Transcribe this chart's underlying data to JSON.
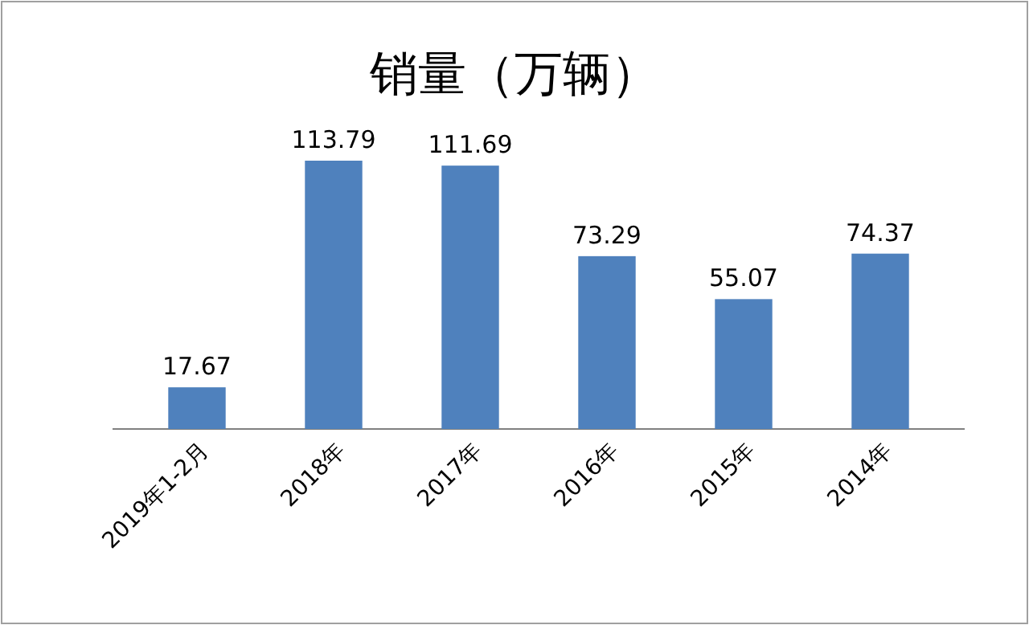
{
  "chart_data": {
    "type": "bar",
    "title": "销量（万辆）",
    "categories": [
      "2019年1-2月",
      "2018年",
      "2017年",
      "2016年",
      "2015年",
      "2014年"
    ],
    "values": [
      17.67,
      113.79,
      111.69,
      73.29,
      55.07,
      74.37
    ],
    "color": "#4f81bd",
    "data_labels": true
  }
}
